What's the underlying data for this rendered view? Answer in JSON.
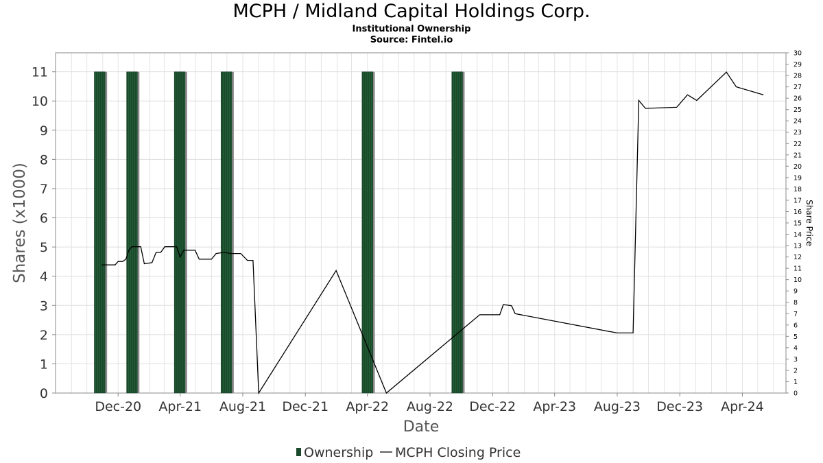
{
  "header": {
    "title": "MCPH / Midland Capital Holdings Corp.",
    "subtitle": "Institutional Ownership",
    "source": "Source: Fintel.io"
  },
  "colors": {
    "bar_fill": "#1a4a2a",
    "bar_shadow": "#8a8a8a",
    "line": "#000000",
    "grid": "#dddddd",
    "frame": "#888888"
  },
  "chart_data": {
    "type": "bar+line",
    "xlabel": "Date",
    "ylabel": "Shares (x1000)",
    "y2label": "Share Price",
    "x_ticks": [
      "Dec-20",
      "Apr-21",
      "Aug-21",
      "Dec-21",
      "Apr-22",
      "Aug-22",
      "Dec-22",
      "Apr-23",
      "Aug-23",
      "Dec-23",
      "Apr-24"
    ],
    "x_tick_dates": [
      "2020-12-01",
      "2021-04-01",
      "2021-08-01",
      "2021-12-01",
      "2022-04-01",
      "2022-08-01",
      "2022-12-01",
      "2023-04-01",
      "2023-08-01",
      "2023-12-01",
      "2024-04-01"
    ],
    "xlim": [
      "2020-08-01",
      "2024-06-25"
    ],
    "ylim": [
      0,
      11.65
    ],
    "y_ticks": [
      0,
      1,
      2,
      3,
      4,
      5,
      6,
      7,
      8,
      9,
      10,
      11
    ],
    "y2lim": [
      0,
      30.0
    ],
    "y2_ticks": [
      0,
      1,
      2,
      3,
      4,
      5,
      6,
      7,
      8,
      9,
      10,
      11,
      12,
      13,
      14,
      15,
      16,
      17,
      18,
      19,
      20,
      21,
      22,
      23,
      24,
      25,
      26,
      27,
      28,
      29,
      30
    ],
    "legend": [
      "Ownership",
      "MCPH Closing Price"
    ],
    "legend_position": "bottom",
    "grid": true,
    "bars": {
      "name": "Ownership",
      "width_days": 21,
      "dates": [
        "2020-10-26",
        "2020-12-28",
        "2021-03-31",
        "2021-06-30",
        "2022-04-01",
        "2022-09-23"
      ],
      "values": [
        11,
        11,
        11,
        11,
        11,
        11
      ]
    },
    "series": [
      {
        "name": "MCPH Closing Price",
        "points": [
          [
            "2020-10-30",
            11.3
          ],
          [
            "2020-11-15",
            11.3
          ],
          [
            "2020-11-25",
            11.3
          ],
          [
            "2020-12-01",
            11.6
          ],
          [
            "2020-12-10",
            11.6
          ],
          [
            "2020-12-16",
            11.8
          ],
          [
            "2020-12-22",
            12.6
          ],
          [
            "2020-12-28",
            12.9
          ],
          [
            "2021-01-14",
            12.9
          ],
          [
            "2021-01-21",
            11.4
          ],
          [
            "2021-02-05",
            11.5
          ],
          [
            "2021-02-13",
            12.4
          ],
          [
            "2021-02-22",
            12.4
          ],
          [
            "2021-03-02",
            12.9
          ],
          [
            "2021-03-25",
            12.9
          ],
          [
            "2021-04-01",
            12.0
          ],
          [
            "2021-04-08",
            12.6
          ],
          [
            "2021-04-22",
            12.6
          ],
          [
            "2021-04-30",
            12.6
          ],
          [
            "2021-05-08",
            11.8
          ],
          [
            "2021-06-01",
            11.8
          ],
          [
            "2021-06-10",
            12.3
          ],
          [
            "2021-06-25",
            12.4
          ],
          [
            "2021-07-10",
            12.3
          ],
          [
            "2021-07-28",
            12.3
          ],
          [
            "2021-08-10",
            11.7
          ],
          [
            "2021-08-21",
            11.7
          ],
          [
            "2021-09-01",
            0.0
          ],
          [
            "2022-01-30",
            10.8
          ],
          [
            "2022-05-08",
            0.0
          ],
          [
            "2022-11-06",
            6.9
          ],
          [
            "2022-12-15",
            6.9
          ],
          [
            "2022-12-22",
            7.8
          ],
          [
            "2023-01-07",
            7.7
          ],
          [
            "2023-01-14",
            7.0
          ],
          [
            "2023-08-01",
            5.3
          ],
          [
            "2023-09-01",
            5.3
          ],
          [
            "2023-09-12",
            25.8
          ],
          [
            "2023-09-25",
            25.1
          ],
          [
            "2023-11-25",
            25.2
          ],
          [
            "2023-12-16",
            26.3
          ],
          [
            "2024-01-03",
            25.8
          ],
          [
            "2024-03-01",
            28.3
          ],
          [
            "2024-03-20",
            27.0
          ],
          [
            "2024-05-12",
            26.3
          ]
        ]
      }
    ]
  }
}
